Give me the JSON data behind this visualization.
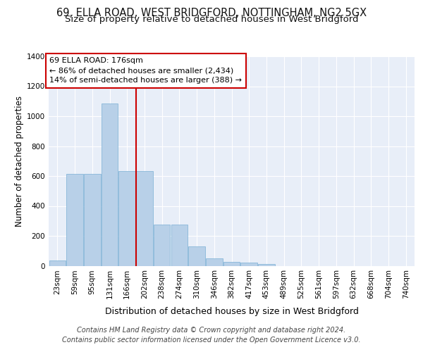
{
  "title": "69, ELLA ROAD, WEST BRIDGFORD, NOTTINGHAM, NG2 5GX",
  "subtitle": "Size of property relative to detached houses in West Bridgford",
  "xlabel": "Distribution of detached houses by size in West Bridgford",
  "ylabel": "Number of detached properties",
  "footnote1": "Contains HM Land Registry data © Crown copyright and database right 2024.",
  "footnote2": "Contains public sector information licensed under the Open Government Licence v3.0.",
  "categories": [
    "23sqm",
    "59sqm",
    "95sqm",
    "131sqm",
    "166sqm",
    "202sqm",
    "238sqm",
    "274sqm",
    "310sqm",
    "346sqm",
    "382sqm",
    "417sqm",
    "453sqm",
    "489sqm",
    "525sqm",
    "561sqm",
    "597sqm",
    "632sqm",
    "668sqm",
    "704sqm",
    "740sqm"
  ],
  "values": [
    35,
    615,
    615,
    1085,
    635,
    635,
    275,
    275,
    128,
    48,
    25,
    22,
    10,
    0,
    0,
    0,
    0,
    0,
    0,
    0,
    0
  ],
  "bar_color": "#b8d0e8",
  "bar_edge_color": "#7aafd4",
  "property_line_x": 4.5,
  "property_label": "69 ELLA ROAD: 176sqm",
  "annotation_line1": "← 86% of detached houses are smaller (2,434)",
  "annotation_line2": "14% of semi-detached houses are larger (388) →",
  "annotation_box_color": "#ffffff",
  "annotation_box_edge_color": "#cc0000",
  "vline_color": "#cc0000",
  "ylim": [
    0,
    1400
  ],
  "yticks": [
    0,
    200,
    400,
    600,
    800,
    1000,
    1200,
    1400
  ],
  "bg_color": "#e8eef8",
  "grid_color": "#ffffff",
  "title_fontsize": 10.5,
  "subtitle_fontsize": 9.5,
  "ylabel_fontsize": 8.5,
  "xlabel_fontsize": 9,
  "tick_fontsize": 7.5,
  "annotation_fontsize": 8,
  "footnote_fontsize": 7
}
